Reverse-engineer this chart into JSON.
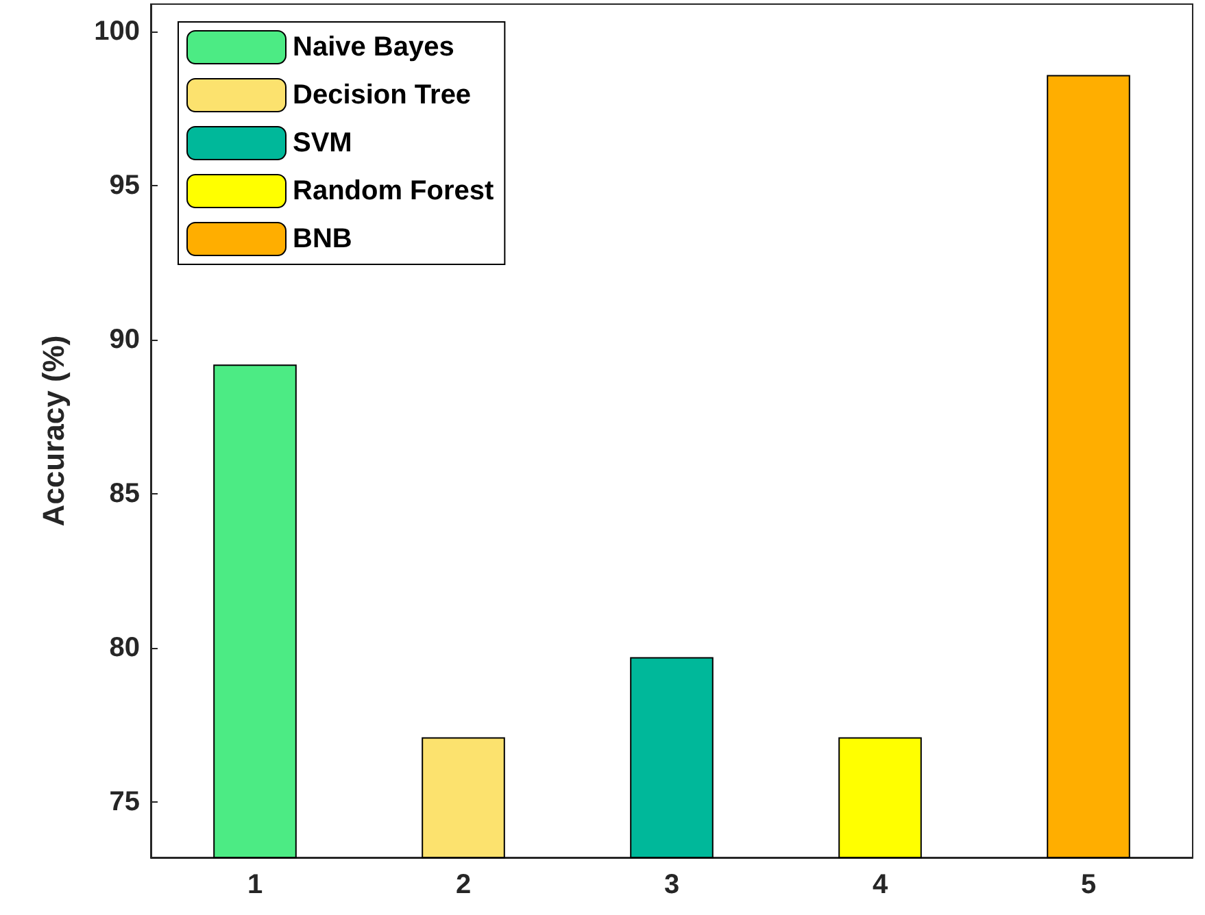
{
  "chart_data": {
    "type": "bar",
    "ylabel": "Accuracy (%)",
    "categories": [
      "1",
      "2",
      "3",
      "4",
      "5"
    ],
    "series": [
      {
        "name": "Naive Bayes",
        "color": "#4ceb84",
        "values": [
          89.2,
          null,
          null,
          null,
          null
        ]
      },
      {
        "name": "Decision Tree",
        "color": "#fce26e",
        "values": [
          null,
          77.1,
          null,
          null,
          null
        ]
      },
      {
        "name": "SVM",
        "color": "#00b89a",
        "values": [
          null,
          null,
          79.7,
          null,
          null
        ]
      },
      {
        "name": "Random Forest",
        "color": "#ffff00",
        "values": [
          null,
          null,
          null,
          77.1,
          null
        ]
      },
      {
        "name": "BNB",
        "color": "#ffae00",
        "values": [
          null,
          null,
          null,
          null,
          98.6
        ]
      }
    ],
    "ylim": [
      73.2,
      100.9
    ],
    "yticks": [
      75,
      80,
      85,
      90,
      95,
      100
    ],
    "grid": false,
    "legend": "top left"
  }
}
